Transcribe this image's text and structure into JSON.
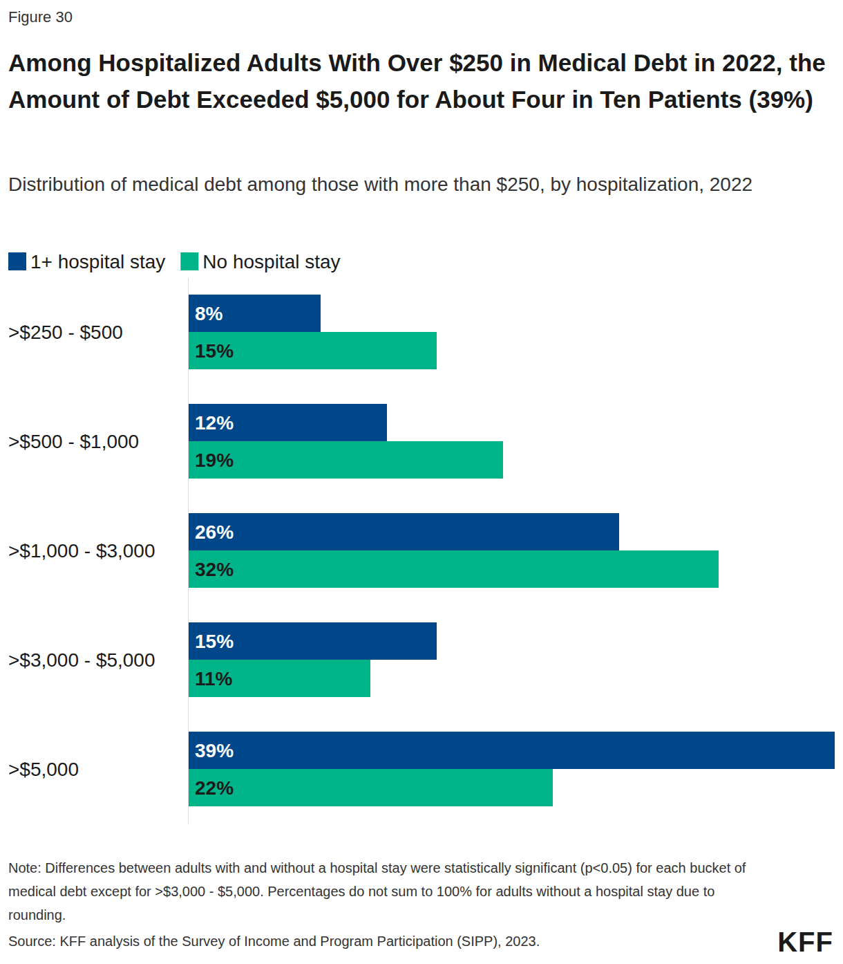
{
  "chart_data": {
    "type": "bar",
    "orientation": "horizontal",
    "figure_label": "Figure 30",
    "title": "Among Hospitalized Adults With Over $250 in Medical Debt in 2022, the Amount of Debt Exceeded $5,000 for About Four in Ten Patients (39%)",
    "subtitle": "Distribution of medical debt among those with more than $250, by hospitalization, 2022",
    "categories": [
      ">$250 - $500",
      ">$500 - $1,000",
      ">$1,000 - $3,000",
      ">$3,000 - $5,000",
      ">$5,000"
    ],
    "series": [
      {
        "name": "1+ hospital stay",
        "color": "#00478a",
        "values": [
          8,
          12,
          26,
          15,
          39
        ],
        "value_labels": [
          "8%",
          "12%",
          "26%",
          "15%",
          "39%"
        ]
      },
      {
        "name": "No hospital stay",
        "color": "#00b48a",
        "values": [
          15,
          19,
          32,
          11,
          22
        ],
        "value_labels": [
          "15%",
          "19%",
          "32%",
          "11%",
          "22%"
        ]
      }
    ],
    "xlim": [
      0,
      39
    ],
    "data_labels": true,
    "tick_labels": "y",
    "legend": "top left",
    "note": "Note: Differences between adults with and without a hospital stay were statistically significant (p<0.05) for each bucket of medical debt except for >$3,000 - $5,000. Percentages do not sum to 100% for adults without a hospital stay due to rounding.",
    "source": "Source: KFF analysis of the Survey of Income and Program Participation (SIPP), 2023.",
    "logo": "KFF"
  }
}
